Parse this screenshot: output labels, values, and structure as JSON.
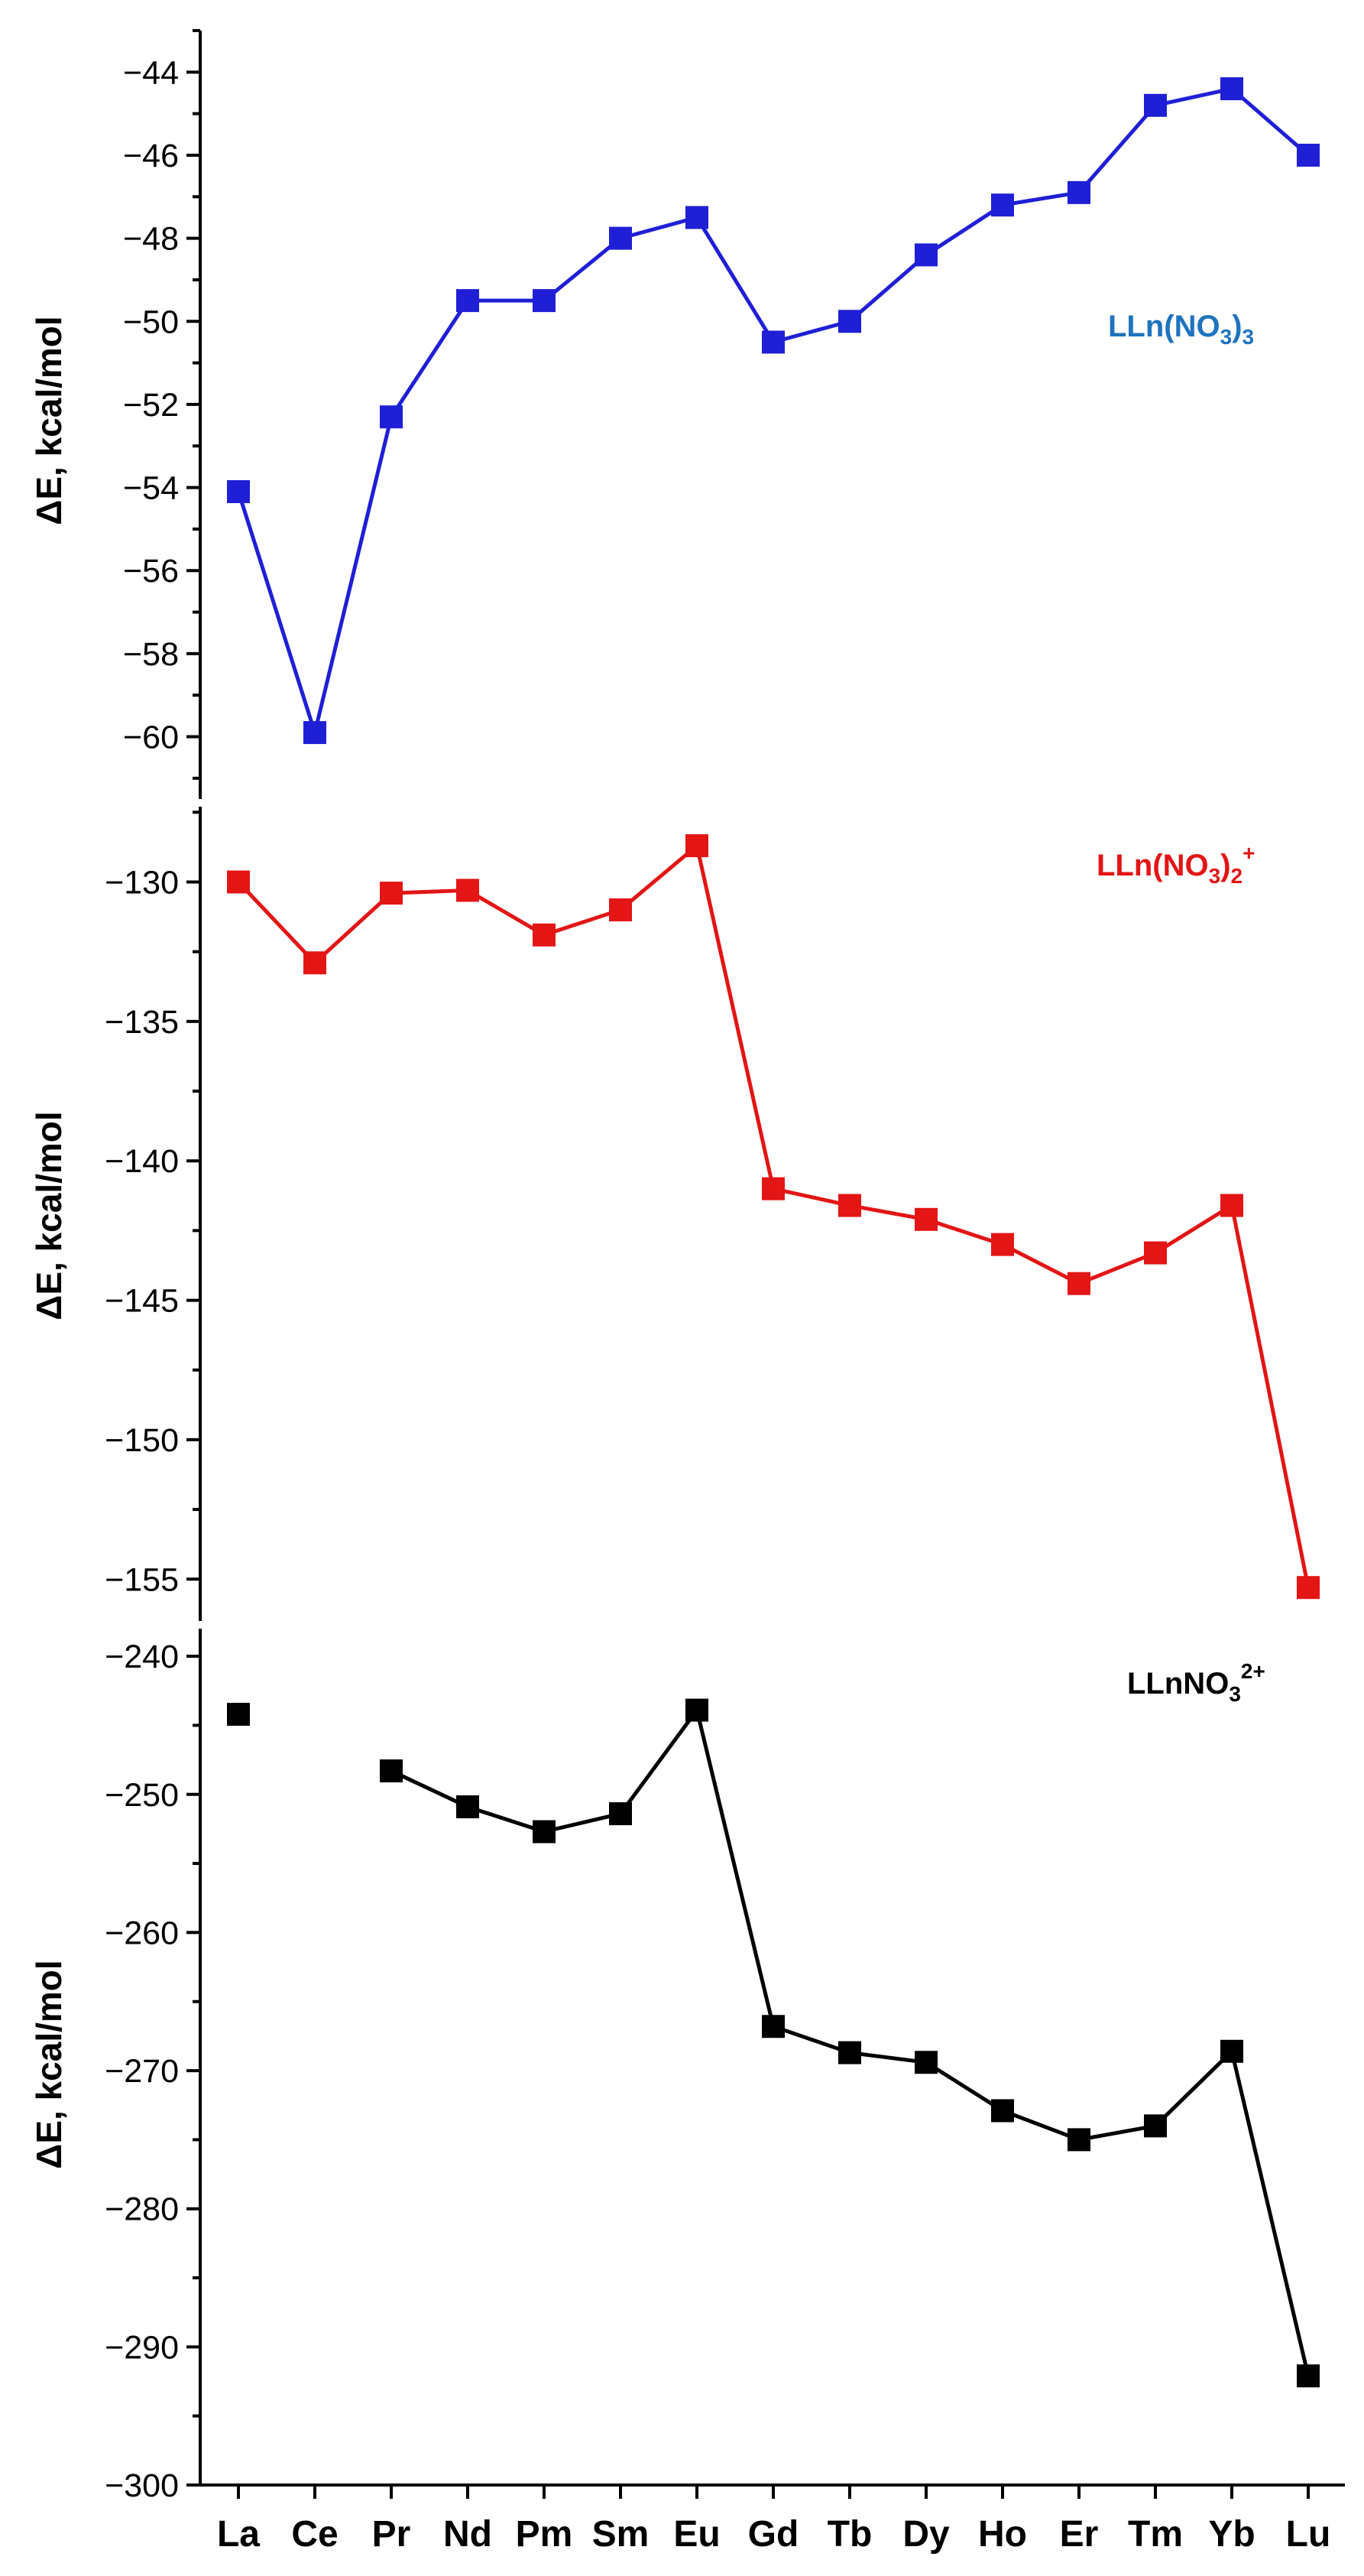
{
  "chart_data": {
    "type": "line",
    "categories": [
      "La",
      "Ce",
      "Pr",
      "Nd",
      "Pm",
      "Sm",
      "Eu",
      "Gd",
      "Tb",
      "Dy",
      "Ho",
      "Er",
      "Tm",
      "Yb",
      "Lu"
    ],
    "panels": [
      {
        "label_main": "LLn(NO",
        "label_sub": "3",
        "label_tail": ")",
        "label_tail_sub": "3",
        "label_sup": "",
        "color": "#1f1fd6",
        "label_color": "#1e73be",
        "ylabel": "ΔE, kcal/mol",
        "ylim": [
          -61.5,
          -43
        ],
        "yticks": [
          -60,
          -58,
          -56,
          -54,
          -52,
          -50,
          -48,
          -46,
          -44
        ],
        "ytick_labels": [
          "−60",
          "−58",
          "−56",
          "−54",
          "−52",
          "−50",
          "−48",
          "−46",
          "−44"
        ],
        "values": [
          -54.1,
          -59.9,
          -52.3,
          -49.5,
          -49.5,
          -48.0,
          -47.5,
          -50.5,
          -50.0,
          -48.4,
          -47.2,
          -46.9,
          -44.8,
          -44.4,
          -46.0
        ],
        "connect": [
          [
            0,
            14
          ]
        ]
      },
      {
        "label_main": "LLn(NO",
        "label_sub": "3",
        "label_tail": ")",
        "label_tail_sub": "2",
        "label_sup": "+",
        "color": "#e31515",
        "label_color": "#e31515",
        "ylabel": "ΔE, kcal/mol",
        "ylim": [
          -156.5,
          -127.3
        ],
        "yticks": [
          -155,
          -150,
          -145,
          -140,
          -135,
          -130
        ],
        "ytick_labels": [
          "−155",
          "−150",
          "−145",
          "−140",
          "−135",
          "−130"
        ],
        "values": [
          -130.0,
          -132.9,
          -130.4,
          -130.3,
          -131.9,
          -131.0,
          -128.7,
          -141.0,
          -141.6,
          -142.1,
          -143.0,
          -144.4,
          -143.3,
          -141.6,
          -155.3
        ],
        "connect": [
          [
            0,
            14
          ]
        ]
      },
      {
        "label_main": "LLnNO",
        "label_sub": "3",
        "label_tail": "",
        "label_tail_sub": "",
        "label_sup": "2+",
        "color": "#000000",
        "label_color": "#000000",
        "ylabel": "ΔE, kcal/mol",
        "ylim": [
          -300,
          -238
        ],
        "yticks": [
          -300,
          -290,
          -280,
          -270,
          -260,
          -250,
          -240
        ],
        "ytick_labels": [
          "−300",
          "−290",
          "−280",
          "−270",
          "−260",
          "−250",
          "−240"
        ],
        "values": [
          -244.2,
          null,
          -248.3,
          -250.9,
          -252.7,
          -251.4,
          -243.9,
          -266.8,
          -268.7,
          -269.4,
          -272.9,
          -275.0,
          -274.0,
          -268.6,
          -292.1
        ],
        "connect": [
          [
            2,
            14
          ]
        ]
      }
    ]
  }
}
